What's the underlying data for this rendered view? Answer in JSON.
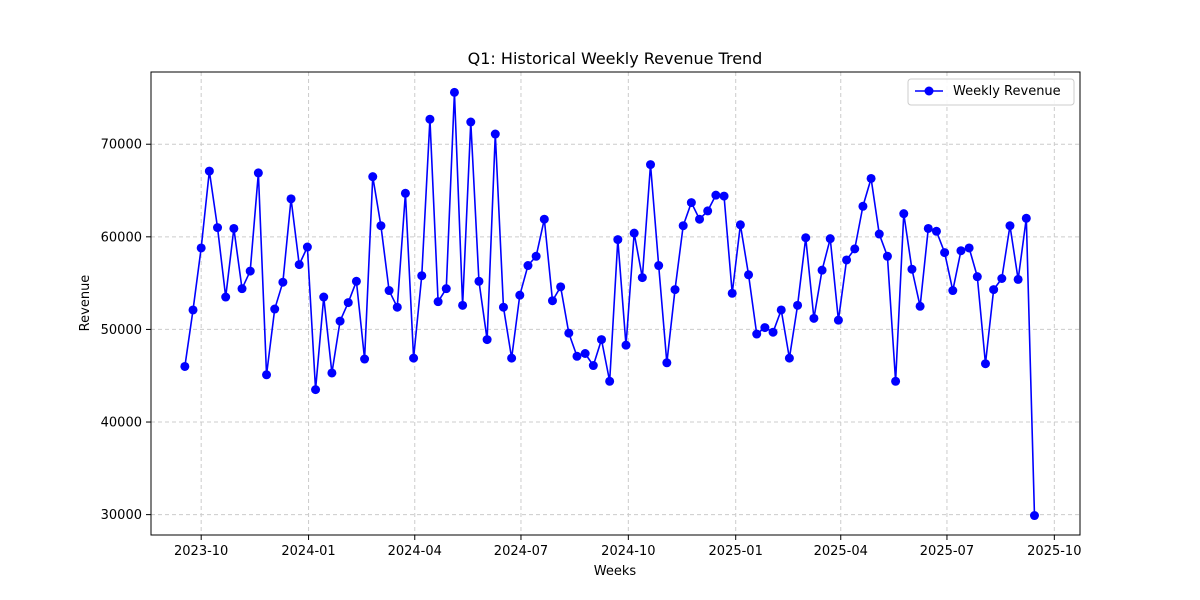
{
  "chart_data": {
    "type": "line",
    "title": "Q1: Historical Weekly Revenue Trend",
    "xlabel": "Weeks",
    "ylabel": "Revenue",
    "grid": true,
    "legend_position": "top-right",
    "xlim": [
      "2023-08-19",
      "2025-10-23"
    ],
    "ylim": [
      27800,
      77800
    ],
    "x_ticks": [
      {
        "date": "2023-10-01",
        "label": "2023-10"
      },
      {
        "date": "2024-01-01",
        "label": "2024-01"
      },
      {
        "date": "2024-04-01",
        "label": "2024-04"
      },
      {
        "date": "2024-07-01",
        "label": "2024-07"
      },
      {
        "date": "2024-10-01",
        "label": "2024-10"
      },
      {
        "date": "2025-01-01",
        "label": "2025-01"
      },
      {
        "date": "2025-04-01",
        "label": "2025-04"
      },
      {
        "date": "2025-07-01",
        "label": "2025-07"
      },
      {
        "date": "2025-10-01",
        "label": "2025-10"
      }
    ],
    "y_ticks": [
      30000,
      40000,
      50000,
      60000,
      70000
    ],
    "series": [
      {
        "name": "Weekly Revenue",
        "color": "#0000ff",
        "start_date": "2023-09-17",
        "interval_days": 7,
        "values": [
          46000,
          52100,
          58800,
          67100,
          61000,
          53500,
          60900,
          54400,
          56300,
          66900,
          45100,
          52200,
          55100,
          64100,
          57000,
          58900,
          43500,
          53500,
          45300,
          50900,
          52900,
          55200,
          46800,
          66500,
          61200,
          54200,
          52400,
          64700,
          46900,
          55800,
          72700,
          53000,
          54400,
          75600,
          52600,
          72400,
          55200,
          48900,
          71100,
          52400,
          46900,
          53700,
          56900,
          57900,
          61900,
          53100,
          54600,
          49600,
          47100,
          47400,
          46100,
          48900,
          44400,
          59700,
          48300,
          60400,
          55600,
          67800,
          56900,
          46400,
          54300,
          61200,
          63700,
          61900,
          62800,
          64500,
          64400,
          53900,
          61300,
          55900,
          49500,
          50200,
          49700,
          52100,
          46900,
          52600,
          59900,
          51200,
          56400,
          59800,
          51000,
          57500,
          58700,
          63300,
          66300,
          60300,
          57900,
          44400,
          62500,
          56500,
          52500,
          60900,
          60600,
          58300,
          54200,
          58500,
          58800,
          55700,
          46300,
          54300,
          55500,
          61200,
          55400,
          62000,
          29900
        ]
      }
    ]
  }
}
